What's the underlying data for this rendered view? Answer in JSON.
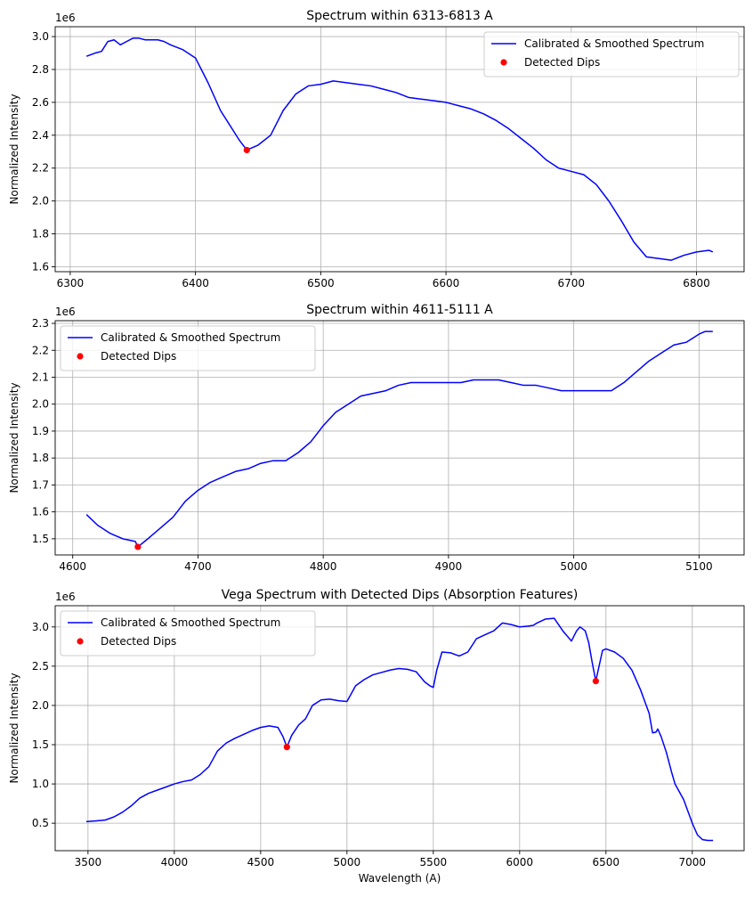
{
  "colors": {
    "line": "#0000ff",
    "dip": "#ff0000",
    "grid": "#b0b0b0"
  },
  "chart_data": [
    {
      "type": "line",
      "title": "Spectrum within 6313-6813 A",
      "xlabel": "",
      "ylabel": "Normalized Intensity",
      "offset_label": "1e6",
      "xlim": [
        6288,
        6838
      ],
      "ylim": [
        1.57,
        3.06
      ],
      "xticks": [
        6300,
        6400,
        6500,
        6600,
        6700,
        6800
      ],
      "xtick_labels": [
        "6300",
        "6400",
        "6500",
        "6600",
        "6700",
        "6800"
      ],
      "yticks": [
        1.6,
        1.8,
        2.0,
        2.2,
        2.4,
        2.6,
        2.8,
        3.0
      ],
      "ytick_labels": [
        "1.6",
        "1.8",
        "2.0",
        "2.2",
        "2.4",
        "2.6",
        "2.8",
        "3.0"
      ],
      "grid": true,
      "legend": {
        "position": "top-right",
        "entries": [
          "Calibrated & Smoothed Spectrum",
          "Detected Dips"
        ]
      },
      "series": [
        {
          "name": "Calibrated & Smoothed Spectrum",
          "kind": "line",
          "x": [
            6313,
            6320,
            6325,
            6330,
            6335,
            6340,
            6345,
            6350,
            6355,
            6360,
            6365,
            6370,
            6375,
            6380,
            6390,
            6400,
            6410,
            6420,
            6430,
            6435,
            6441,
            6450,
            6460,
            6470,
            6480,
            6490,
            6500,
            6510,
            6520,
            6530,
            6540,
            6550,
            6560,
            6570,
            6580,
            6590,
            6600,
            6610,
            6620,
            6630,
            6640,
            6650,
            6660,
            6670,
            6680,
            6690,
            6700,
            6710,
            6720,
            6730,
            6740,
            6750,
            6760,
            6770,
            6780,
            6790,
            6800,
            6810,
            6813
          ],
          "y": [
            2.88,
            2.9,
            2.91,
            2.97,
            2.98,
            2.95,
            2.97,
            2.99,
            2.99,
            2.98,
            2.98,
            2.98,
            2.97,
            2.95,
            2.92,
            2.87,
            2.72,
            2.55,
            2.43,
            2.37,
            2.31,
            2.34,
            2.4,
            2.55,
            2.65,
            2.7,
            2.71,
            2.73,
            2.72,
            2.71,
            2.7,
            2.68,
            2.66,
            2.63,
            2.62,
            2.61,
            2.6,
            2.58,
            2.56,
            2.53,
            2.49,
            2.44,
            2.38,
            2.32,
            2.25,
            2.2,
            2.18,
            2.16,
            2.1,
            2.0,
            1.88,
            1.75,
            1.66,
            1.65,
            1.64,
            1.67,
            1.69,
            1.7,
            1.69
          ]
        },
        {
          "name": "Detected Dips",
          "kind": "scatter",
          "x": [
            6441
          ],
          "y": [
            2.31
          ]
        }
      ]
    },
    {
      "type": "line",
      "title": "Spectrum within 4611-5111 A",
      "xlabel": "",
      "ylabel": "Normalized Intensity",
      "offset_label": "1e6",
      "xlim": [
        4586,
        5136
      ],
      "ylim": [
        1.44,
        2.31
      ],
      "xticks": [
        4600,
        4700,
        4800,
        4900,
        5000,
        5100
      ],
      "xtick_labels": [
        "4600",
        "4700",
        "4800",
        "4900",
        "5000",
        "5100"
      ],
      "yticks": [
        1.5,
        1.6,
        1.7,
        1.8,
        1.9,
        2.0,
        2.1,
        2.2,
        2.3
      ],
      "ytick_labels": [
        "1.5",
        "1.6",
        "1.7",
        "1.8",
        "1.9",
        "2.0",
        "2.1",
        "2.2",
        "2.3"
      ],
      "grid": true,
      "legend": {
        "position": "top-left",
        "entries": [
          "Calibrated & Smoothed Spectrum",
          "Detected Dips"
        ]
      },
      "series": [
        {
          "name": "Calibrated & Smoothed Spectrum",
          "kind": "line",
          "x": [
            4611,
            4620,
            4630,
            4640,
            4650,
            4652,
            4660,
            4670,
            4680,
            4690,
            4700,
            4710,
            4720,
            4730,
            4740,
            4750,
            4760,
            4770,
            4780,
            4790,
            4800,
            4810,
            4820,
            4830,
            4840,
            4850,
            4860,
            4870,
            4880,
            4890,
            4900,
            4910,
            4920,
            4930,
            4940,
            4950,
            4960,
            4970,
            4980,
            4990,
            5000,
            5010,
            5020,
            5030,
            5040,
            5050,
            5060,
            5070,
            5080,
            5090,
            5100,
            5105,
            5111
          ],
          "y": [
            1.59,
            1.55,
            1.52,
            1.5,
            1.49,
            1.47,
            1.5,
            1.54,
            1.58,
            1.64,
            1.68,
            1.71,
            1.73,
            1.75,
            1.76,
            1.78,
            1.79,
            1.79,
            1.82,
            1.86,
            1.92,
            1.97,
            2.0,
            2.03,
            2.04,
            2.05,
            2.07,
            2.08,
            2.08,
            2.08,
            2.08,
            2.08,
            2.09,
            2.09,
            2.09,
            2.08,
            2.07,
            2.07,
            2.06,
            2.05,
            2.05,
            2.05,
            2.05,
            2.05,
            2.08,
            2.12,
            2.16,
            2.19,
            2.22,
            2.23,
            2.26,
            2.27,
            2.27
          ]
        },
        {
          "name": "Detected Dips",
          "kind": "scatter",
          "x": [
            4652
          ],
          "y": [
            1.47
          ]
        }
      ]
    },
    {
      "type": "line",
      "title": "Vega Spectrum with Detected Dips (Absorption Features)",
      "xlabel": "Wavelength (A)",
      "ylabel": "Normalized Intensity",
      "offset_label": "1e6",
      "xlim": [
        3310,
        7300
      ],
      "ylim": [
        0.15,
        3.27
      ],
      "xticks": [
        3500,
        4000,
        4500,
        5000,
        5500,
        6000,
        6500,
        7000
      ],
      "xtick_labels": [
        "3500",
        "4000",
        "4500",
        "5000",
        "5500",
        "6000",
        "6500",
        "7000"
      ],
      "yticks": [
        0.5,
        1.0,
        1.5,
        2.0,
        2.5,
        3.0
      ],
      "ytick_labels": [
        "0.5",
        "1.0",
        "1.5",
        "2.0",
        "2.5",
        "3.0"
      ],
      "grid": true,
      "legend": {
        "position": "top-left",
        "entries": [
          "Calibrated & Smoothed Spectrum",
          "Detected Dips"
        ]
      },
      "series": [
        {
          "name": "Calibrated & Smoothed Spectrum",
          "kind": "line",
          "x": [
            3490,
            3550,
            3600,
            3650,
            3700,
            3750,
            3800,
            3850,
            3900,
            3950,
            4000,
            4050,
            4100,
            4150,
            4200,
            4250,
            4300,
            4350,
            4400,
            4450,
            4500,
            4550,
            4600,
            4630,
            4652,
            4680,
            4720,
            4760,
            4800,
            4850,
            4900,
            4950,
            5000,
            5050,
            5100,
            5150,
            5200,
            5250,
            5300,
            5350,
            5400,
            5450,
            5480,
            5500,
            5520,
            5550,
            5600,
            5650,
            5700,
            5750,
            5800,
            5850,
            5900,
            5950,
            6000,
            6050,
            6080,
            6100,
            6150,
            6200,
            6250,
            6300,
            6330,
            6350,
            6380,
            6400,
            6420,
            6441,
            6460,
            6480,
            6500,
            6550,
            6600,
            6650,
            6700,
            6750,
            6770,
            6790,
            6800,
            6820,
            6850,
            6880,
            6900,
            6950,
            7000,
            7030,
            7060,
            7090,
            7120
          ],
          "y": [
            0.52,
            0.53,
            0.54,
            0.58,
            0.64,
            0.72,
            0.82,
            0.88,
            0.92,
            0.96,
            1.0,
            1.03,
            1.05,
            1.12,
            1.22,
            1.42,
            1.52,
            1.58,
            1.63,
            1.68,
            1.72,
            1.74,
            1.72,
            1.6,
            1.47,
            1.62,
            1.75,
            1.83,
            2.0,
            2.07,
            2.08,
            2.06,
            2.05,
            2.25,
            2.33,
            2.39,
            2.42,
            2.45,
            2.47,
            2.46,
            2.43,
            2.3,
            2.25,
            2.23,
            2.45,
            2.68,
            2.67,
            2.63,
            2.68,
            2.85,
            2.9,
            2.95,
            3.05,
            3.03,
            3.0,
            3.01,
            3.02,
            3.05,
            3.1,
            3.11,
            2.95,
            2.82,
            2.95,
            3.0,
            2.95,
            2.8,
            2.55,
            2.31,
            2.5,
            2.7,
            2.72,
            2.68,
            2.6,
            2.45,
            2.2,
            1.9,
            1.65,
            1.66,
            1.7,
            1.6,
            1.4,
            1.15,
            1.0,
            0.8,
            0.5,
            0.35,
            0.29,
            0.28,
            0.28
          ]
        },
        {
          "name": "Detected Dips",
          "kind": "scatter",
          "x": [
            4652,
            6441
          ],
          "y": [
            1.47,
            2.31
          ]
        }
      ]
    }
  ]
}
